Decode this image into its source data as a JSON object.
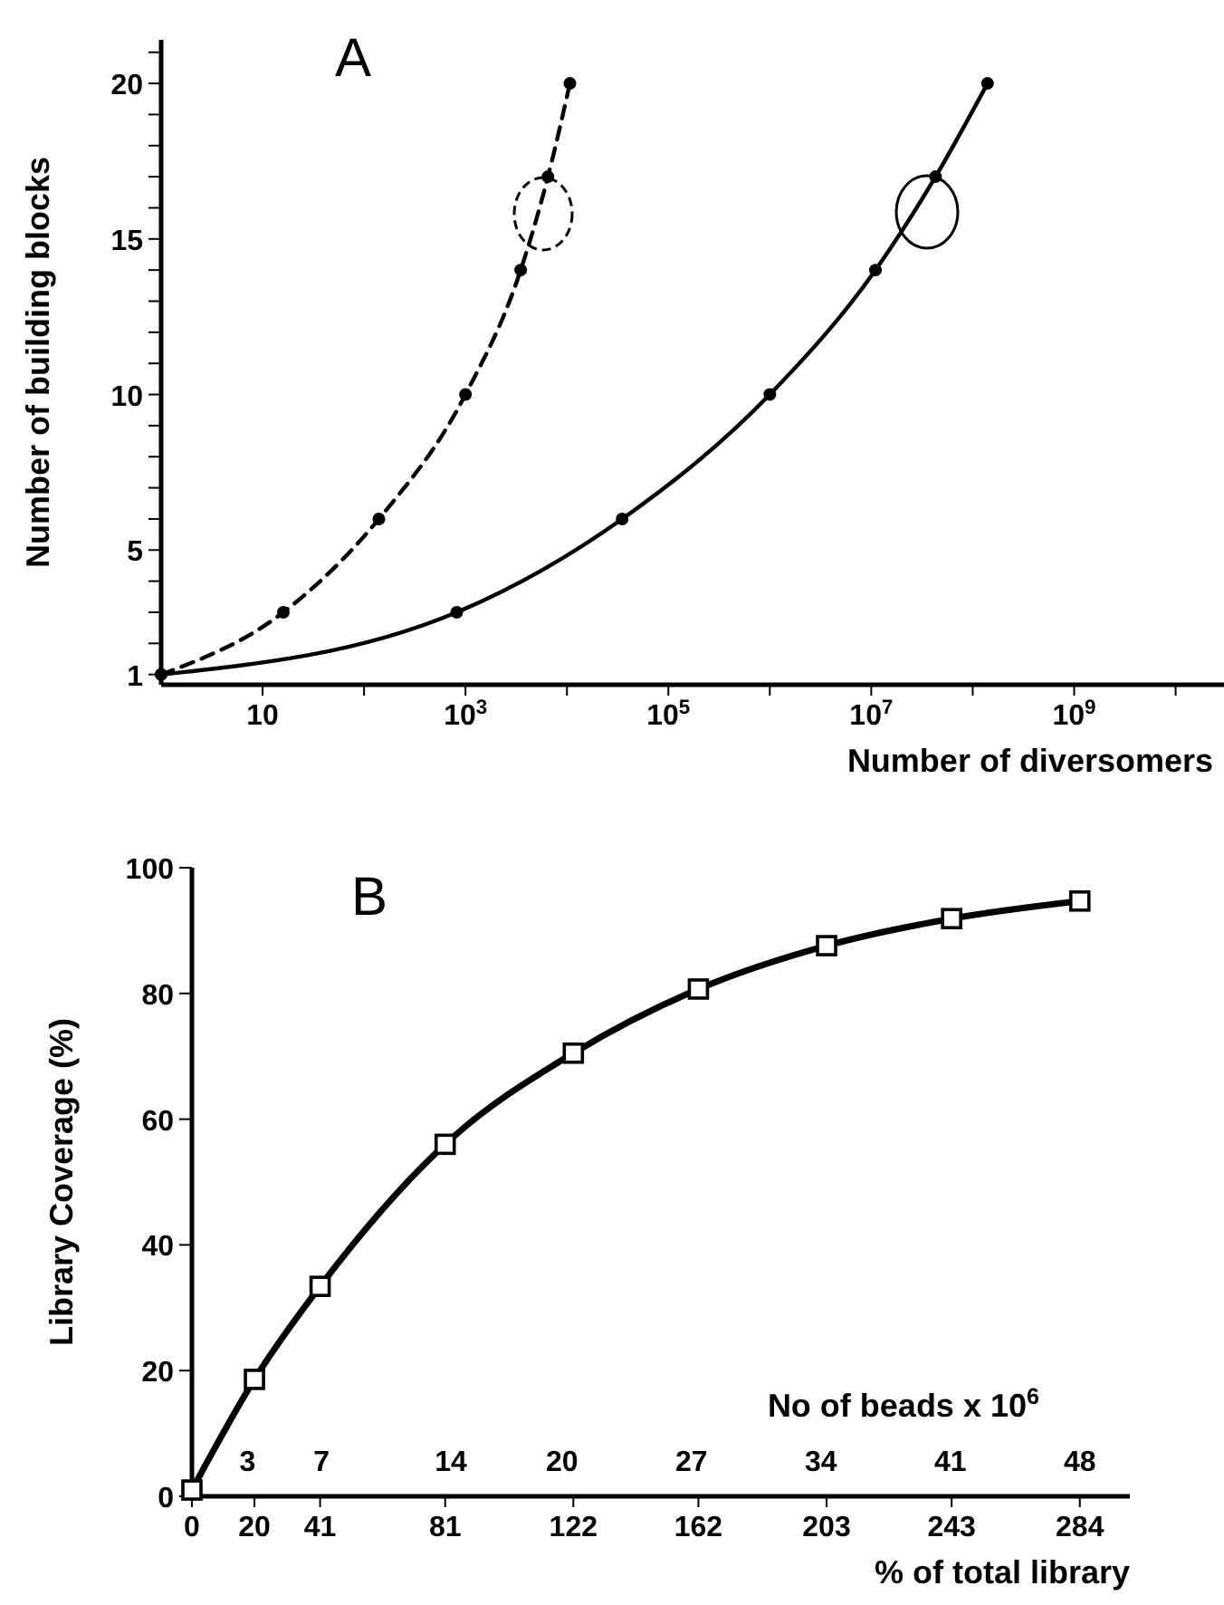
{
  "chart_data": [
    {
      "type": "line",
      "title": "A",
      "xlabel": "Number of diversomers",
      "ylabel": "Number of building blocks",
      "log": "x",
      "marker": "circle",
      "xlim": [
        1,
        30000000000
      ],
      "ylim": [
        0.67,
        21.4
      ],
      "xticks": [
        10,
        {
          "value": 100,
          "label": null
        },
        {
          "value": 1000,
          "label": "10$^{3}$"
        },
        {
          "value": 10000,
          "label": null
        },
        {
          "value": 100000,
          "label": "10$^{5}$"
        },
        {
          "value": 1000000,
          "label": null
        },
        {
          "value": 10000000,
          "label": "10$^{7}$"
        },
        {
          "value": 100000000,
          "label": null
        },
        {
          "value": 1000000000,
          "label": "10$^{9}$"
        },
        {
          "value": 10000000000,
          "label": null
        }
      ],
      "yticks": [
        1,
        {
          "value": 2,
          "label": null
        },
        {
          "value": 3,
          "label": null
        },
        {
          "value": 4,
          "label": null
        },
        5,
        {
          "value": 6,
          "label": null
        },
        {
          "value": 7,
          "label": null
        },
        {
          "value": 8,
          "label": null
        },
        {
          "value": 9,
          "label": null
        },
        10,
        {
          "value": 11,
          "label": null
        },
        {
          "value": 12,
          "label": null
        },
        {
          "value": 13,
          "label": null
        },
        {
          "value": 14,
          "label": null
        },
        15,
        {
          "value": 16,
          "label": null
        },
        {
          "value": 17,
          "label": null
        },
        {
          "value": 18,
          "label": null
        },
        {
          "value": 19,
          "label": null
        },
        20,
        {
          "value": 21,
          "label": null
        }
      ],
      "series": [
        {
          "color": "#000000",
          "line_style": "dashed",
          "x": [
            1,
            16,
            140,
            1000,
            3500,
            6500,
            10700
          ],
          "values": [
            1,
            3,
            6,
            10,
            14,
            17,
            20
          ]
        },
        {
          "color": "#000000",
          "line_style": "solid",
          "x": [
            1,
            820,
            35000,
            1000000,
            11000000,
            43000000,
            140000000
          ],
          "values": [
            1,
            3,
            6,
            10,
            14,
            17,
            20
          ]
        }
      ]
    },
    {
      "type": "line",
      "title": "B",
      "xlabel": "% of total library",
      "ylabel": "Library Coverage (%)",
      "x2label": "No of beads x 10$^{6}$",
      "marker": "square",
      "xlim": [
        0,
        300
      ],
      "ylim": [
        0,
        100
      ],
      "x2lim": [
        0,
        50.7
      ],
      "xticks": [
        0,
        20,
        41,
        81,
        122,
        162,
        203,
        243,
        284
      ],
      "x2ticks": [
        3,
        7,
        14,
        20,
        27,
        34,
        41,
        48
      ],
      "yticks": [
        0,
        20,
        40,
        60,
        80,
        100
      ],
      "series": [
        {
          "color": "#000000",
          "line_style": "solid",
          "x": [
            0,
            20,
            41,
            81,
            122,
            162,
            203,
            243,
            284
          ],
          "values": [
            1,
            18.6,
            33.4,
            56,
            70.5,
            80.7,
            87.6,
            91.9,
            94.7
          ]
        }
      ]
    }
  ]
}
